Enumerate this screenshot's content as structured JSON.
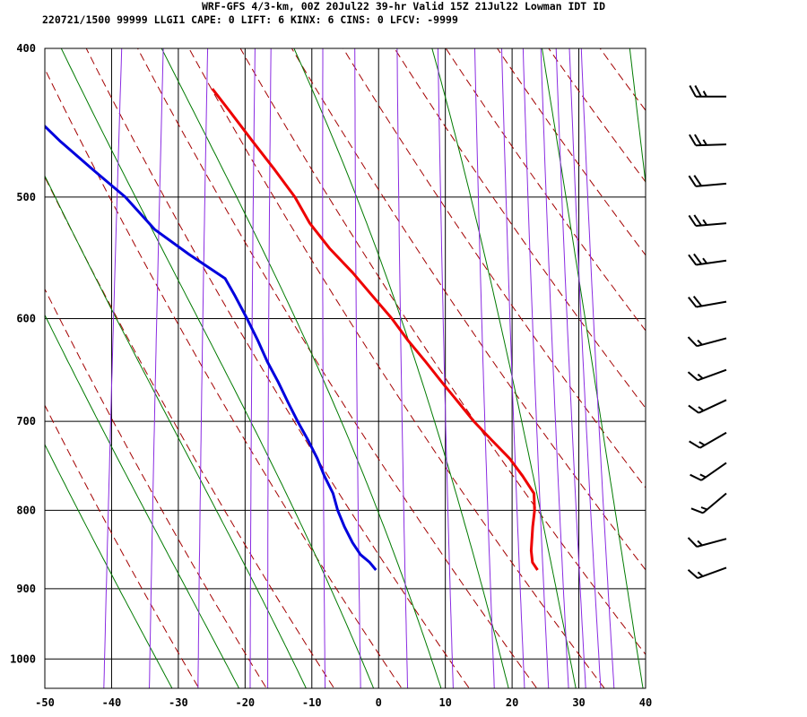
{
  "header": {
    "line1": "WRF-GFS 4/3-km, 00Z 20Jul22 39-hr Valid 15Z 21Jul22 Lowman IDT ID",
    "line2": "220721/1500 99999  LLGI1   CAPE:      0 LIFT:     6 KINX:     6 CINS:     0 LFCV: -9999"
  },
  "chart_data": {
    "type": "skew-t",
    "x_axis": {
      "ticks": [
        -50,
        -40,
        -30,
        -20,
        -10,
        0,
        10,
        20,
        30,
        40
      ],
      "range": [
        -50,
        40
      ]
    },
    "y_axis": {
      "ticks": [
        400,
        500,
        600,
        700,
        800,
        900,
        1000
      ],
      "range": [
        400,
        1045
      ],
      "scale": "log"
    },
    "background": {
      "dry_adiabats": "dashed",
      "moist_adiabats": "solid",
      "mixing_ratio_lines": "solid"
    },
    "series": [
      {
        "role": "temperature",
        "color": "#ee0000",
        "points": [
          {
            "p": 875,
            "t": 21.7
          },
          {
            "p": 865,
            "t": 20.8
          },
          {
            "p": 850,
            "t": 20.4
          },
          {
            "p": 820,
            "t": 20.2
          },
          {
            "p": 800,
            "t": 20.2
          },
          {
            "p": 780,
            "t": 19.8
          },
          {
            "p": 760,
            "t": 17.8
          },
          {
            "p": 740,
            "t": 15.5
          },
          {
            "p": 720,
            "t": 12.5
          },
          {
            "p": 700,
            "t": 9.5
          },
          {
            "p": 680,
            "t": 6.8
          },
          {
            "p": 660,
            "t": 4.0
          },
          {
            "p": 640,
            "t": 1.2
          },
          {
            "p": 620,
            "t": -1.8
          },
          {
            "p": 600,
            "t": -4.6
          },
          {
            "p": 580,
            "t": -7.9
          },
          {
            "p": 560,
            "t": -11.3
          },
          {
            "p": 540,
            "t": -15.2
          },
          {
            "p": 520,
            "t": -18.6
          },
          {
            "p": 500,
            "t": -21.3
          },
          {
            "p": 480,
            "t": -24.8
          },
          {
            "p": 460,
            "t": -28.6
          },
          {
            "p": 440,
            "t": -32.5
          },
          {
            "p": 425,
            "t": -35.6
          }
        ]
      },
      {
        "role": "dewpoint",
        "color": "#0000dd",
        "points": [
          {
            "p": 875,
            "t": -2.5
          },
          {
            "p": 865,
            "t": -3.6
          },
          {
            "p": 855,
            "t": -5.1
          },
          {
            "p": 840,
            "t": -6.5
          },
          {
            "p": 820,
            "t": -8.0
          },
          {
            "p": 800,
            "t": -9.3
          },
          {
            "p": 780,
            "t": -10.3
          },
          {
            "p": 760,
            "t": -11.9
          },
          {
            "p": 740,
            "t": -13.3
          },
          {
            "p": 720,
            "t": -15.0
          },
          {
            "p": 700,
            "t": -16.9
          },
          {
            "p": 680,
            "t": -18.7
          },
          {
            "p": 660,
            "t": -20.5
          },
          {
            "p": 640,
            "t": -22.5
          },
          {
            "p": 620,
            "t": -24.3
          },
          {
            "p": 600,
            "t": -26.3
          },
          {
            "p": 580,
            "t": -28.5
          },
          {
            "p": 565,
            "t": -30.3
          },
          {
            "p": 545,
            "t": -36.1
          },
          {
            "p": 525,
            "t": -41.7
          },
          {
            "p": 500,
            "t": -46.7
          },
          {
            "p": 480,
            "t": -52.0
          },
          {
            "p": 460,
            "t": -57.4
          },
          {
            "p": 440,
            "t": -62.5
          },
          {
            "p": 425,
            "t": -66.2
          }
        ]
      }
    ],
    "wind_barbs": [
      {
        "p": 872,
        "dir": 250,
        "speed": 15
      },
      {
        "p": 835,
        "dir": 255,
        "speed": 15
      },
      {
        "p": 780,
        "dir": 230,
        "speed": 15
      },
      {
        "p": 745,
        "dir": 235,
        "speed": 15
      },
      {
        "p": 712,
        "dir": 240,
        "speed": 15
      },
      {
        "p": 678,
        "dir": 245,
        "speed": 15
      },
      {
        "p": 648,
        "dir": 250,
        "speed": 15
      },
      {
        "p": 618,
        "dir": 255,
        "speed": 15
      },
      {
        "p": 585,
        "dir": 260,
        "speed": 20
      },
      {
        "p": 550,
        "dir": 262,
        "speed": 25
      },
      {
        "p": 520,
        "dir": 265,
        "speed": 25
      },
      {
        "p": 490,
        "dir": 265,
        "speed": 20
      },
      {
        "p": 462,
        "dir": 268,
        "speed": 25
      },
      {
        "p": 430,
        "dir": 270,
        "speed": 25
      }
    ]
  }
}
